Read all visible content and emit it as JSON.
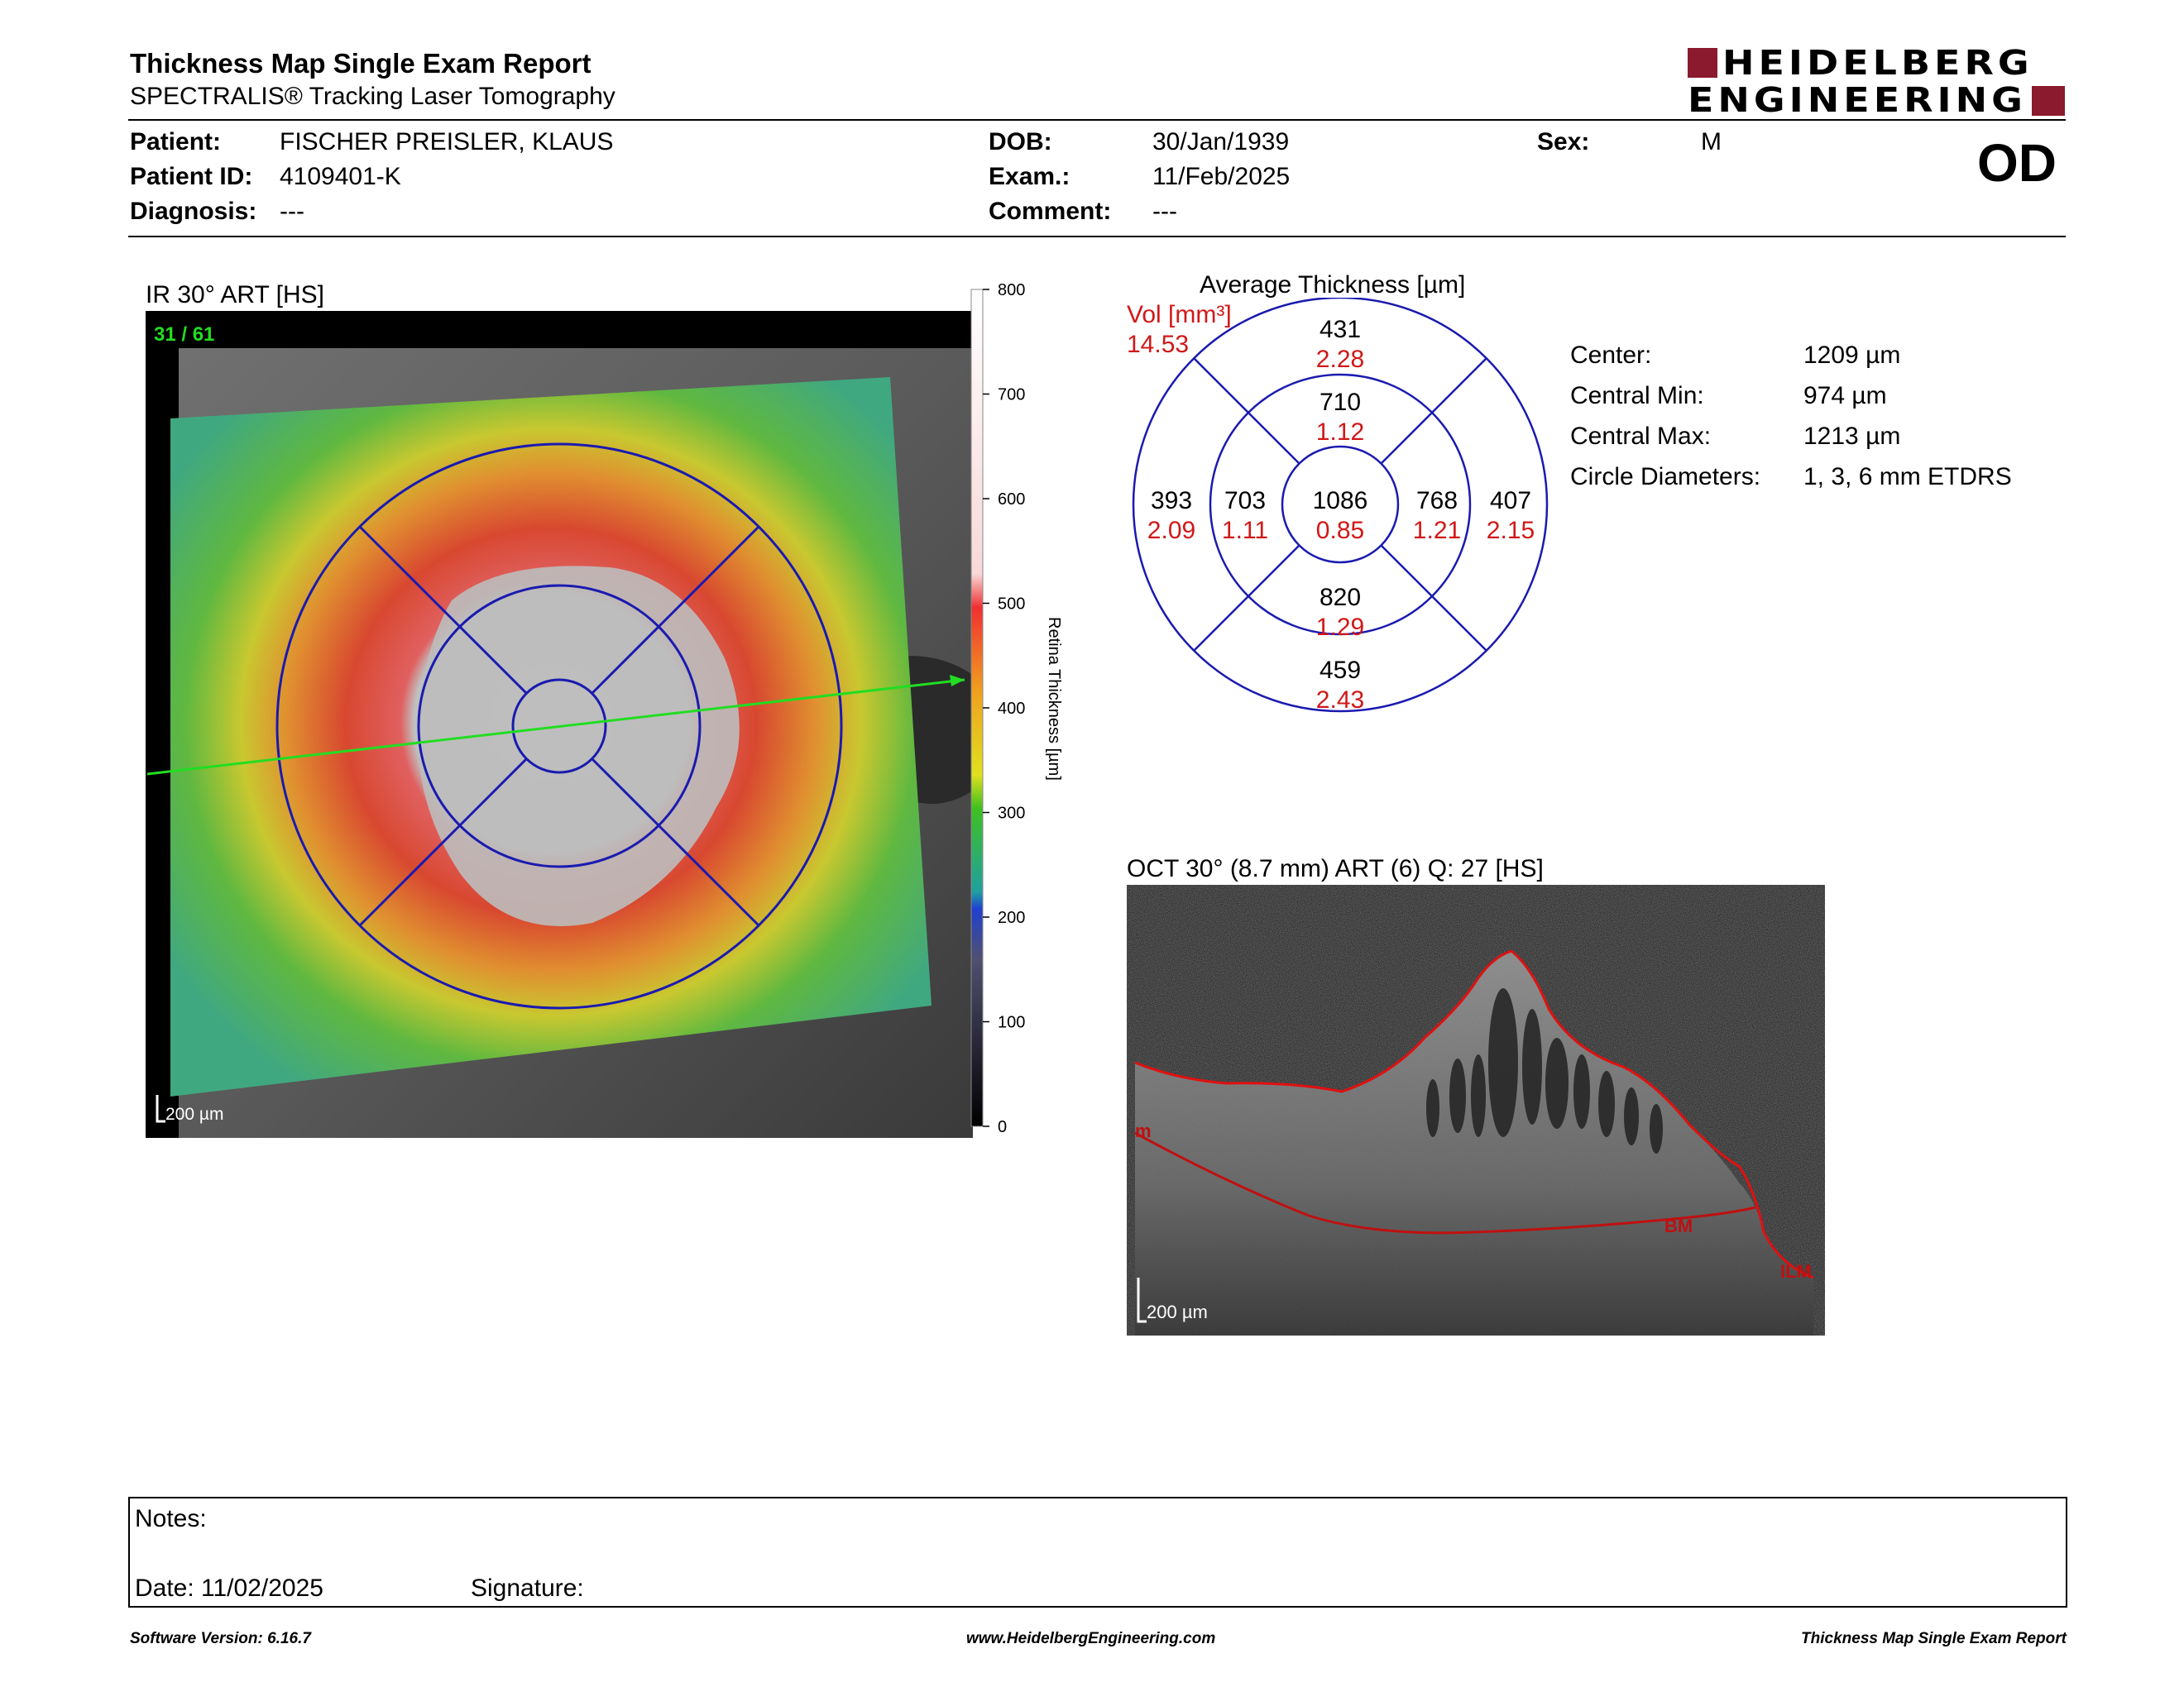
{
  "header": {
    "title": "Thickness Map Single Exam Report",
    "subtitle": "SPECTRALIS® Tracking Laser Tomography",
    "logo_line1": "HEIDELBERG",
    "logo_line2": "ENGINEERING",
    "eye": "OD"
  },
  "patient": {
    "patient_label": "Patient:",
    "patient_value": "FISCHER PREISLER, KLAUS",
    "id_label": "Patient ID:",
    "id_value": "4109401-K",
    "diagnosis_label": "Diagnosis:",
    "diagnosis_value": "---",
    "dob_label": "DOB:",
    "dob_value": "30/Jan/1939",
    "exam_label": "Exam.:",
    "exam_value": "11/Feb/2025",
    "comment_label": "Comment:",
    "comment_value": "---",
    "sex_label": "Sex:",
    "sex_value": "M"
  },
  "ir_panel": {
    "title": "IR 30° ART [HS]",
    "frame": "31 / 61",
    "scale": "200 µm",
    "colorbar_label": "Retina  Thickness [µm]",
    "colorbar_ticks": [
      "800",
      "700",
      "600",
      "500",
      "400",
      "300",
      "200",
      "100",
      "0"
    ]
  },
  "etdrs": {
    "title": "Average Thickness [µm]",
    "vol_label": "Vol [mm³]",
    "vol_total": "14.53",
    "center": {
      "t": "1086",
      "v": "0.85"
    },
    "inner_superior": {
      "t": "710",
      "v": "1.12"
    },
    "inner_inferior": {
      "t": "820",
      "v": "1.29"
    },
    "inner_temporal": {
      "t": "703",
      "v": "1.11"
    },
    "inner_nasal": {
      "t": "768",
      "v": "1.21"
    },
    "outer_superior": {
      "t": "431",
      "v": "2.28"
    },
    "outer_inferior": {
      "t": "459",
      "v": "2.43"
    },
    "outer_temporal": {
      "t": "393",
      "v": "2.09"
    },
    "outer_nasal": {
      "t": "407",
      "v": "2.15"
    }
  },
  "stats": [
    {
      "label": "Center:",
      "value": "1209 µm"
    },
    {
      "label": "Central Min:",
      "value": "974 µm"
    },
    {
      "label": "Central Max:",
      "value": "1213 µm"
    },
    {
      "label": "Circle Diameters:",
      "value": "1, 3, 6 mm ETDRS"
    }
  ],
  "oct_panel": {
    "title": "OCT 30° (8.7 mm) ART (6) Q: 27 [HS]",
    "scale": "200 µm",
    "label_bm": "BM",
    "label_ilm": "ILM",
    "label_left": "m"
  },
  "notes": {
    "notes_label": "Notes:",
    "date_label": "Date: 11/02/2025",
    "signature_label": "Signature:"
  },
  "footer": {
    "left": "Software Version: 6.16.7",
    "center": "www.HeidelbergEngineering.com",
    "right": "Thickness Map Single Exam Report"
  },
  "colors": {
    "logo_accent": "#8b1a2e",
    "grid_blue": "#1a1ab0",
    "vol_red": "#d01818",
    "scan_green": "#22dd22"
  }
}
